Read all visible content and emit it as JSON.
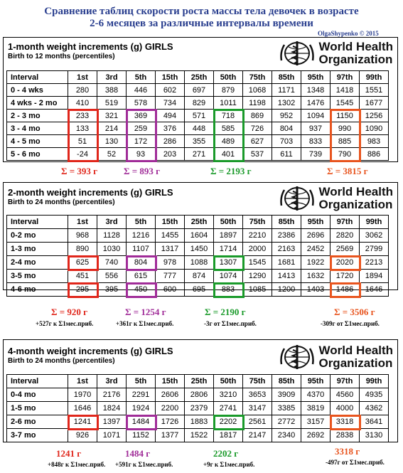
{
  "header": {
    "title_line1": "Сравнение таблиц скорости роста массы тела девочек в возрасте",
    "title_line2": "2-6 месяцев за различные интервалы времени",
    "credit": "OlgaShypenko © 2015"
  },
  "who": {
    "line1": "World Health",
    "line2": "Organization"
  },
  "columns": [
    "Interval",
    "1st",
    "3rd",
    "5th",
    "15th",
    "25th",
    "50th",
    "75th",
    "85th",
    "95th",
    "97th",
    "99th"
  ],
  "table1": {
    "title": "1-month weight increments (g) GIRLS",
    "subtitle": "Birth to 12 months (percentiles)",
    "rows": [
      [
        "0 - 4 wks",
        "280",
        "388",
        "446",
        "602",
        "697",
        "879",
        "1068",
        "1171",
        "1348",
        "1418",
        "1551"
      ],
      [
        "4 wks - 2 mo",
        "410",
        "519",
        "578",
        "734",
        "829",
        "1011",
        "1198",
        "1302",
        "1476",
        "1545",
        "1677"
      ],
      [
        "2 - 3 mo",
        "233",
        "321",
        "369",
        "494",
        "571",
        "718",
        "869",
        "952",
        "1094",
        "1150",
        "1256"
      ],
      [
        "3 - 4 mo",
        "133",
        "214",
        "259",
        "376",
        "448",
        "585",
        "726",
        "804",
        "937",
        "990",
        "1090"
      ],
      [
        "4 - 5 mo",
        "51",
        "130",
        "172",
        "286",
        "355",
        "489",
        "627",
        "703",
        "833",
        "885",
        "983"
      ],
      [
        "5 - 6 mo",
        "-24",
        "52",
        "93",
        "203",
        "271",
        "401",
        "537",
        "611",
        "739",
        "790",
        "886"
      ]
    ],
    "sums": [
      "Σ = 393 г",
      "Σ = 893 г",
      "Σ = 2193 г",
      "Σ = 3815 г"
    ]
  },
  "table2": {
    "title": "2-month weight increments (g) GIRLS",
    "subtitle": "Birth to 24 months (percentiles)",
    "rows": [
      [
        "0-2 mo",
        "968",
        "1128",
        "1216",
        "1455",
        "1604",
        "1897",
        "2210",
        "2386",
        "2696",
        "2820",
        "3062"
      ],
      [
        "1-3 mo",
        "890",
        "1030",
        "1107",
        "1317",
        "1450",
        "1714",
        "2000",
        "2163",
        "2452",
        "2569",
        "2799"
      ],
      [
        "2-4 mo",
        "625",
        "740",
        "804",
        "978",
        "1088",
        "1307",
        "1545",
        "1681",
        "1922",
        "2020",
        "2213"
      ],
      [
        "3-5 mo",
        "451",
        "556",
        "615",
        "777",
        "874",
        "1074",
        "1290",
        "1413",
        "1632",
        "1720",
        "1894"
      ],
      [
        "4-6 mo",
        "295",
        "395",
        "450",
        "600",
        "695",
        "883",
        "1085",
        "1200",
        "1403",
        "1486",
        "1646"
      ]
    ],
    "sums": [
      "Σ = 920 г",
      "Σ = 1254 г",
      "Σ = 2190 г",
      "Σ = 3506 г"
    ],
    "notes": [
      "+527г к Σ1мес.приб.",
      "+361г к Σ1мес.приб.",
      "-3г от Σ1мес.приб.",
      "-309г от Σ1мес.приб."
    ]
  },
  "table3": {
    "title": "4-month weight increments (g) GIRLS",
    "subtitle": "Birth to 24 months (percentiles)",
    "rows": [
      [
        "0-4 mo",
        "1970",
        "2176",
        "2291",
        "2606",
        "2806",
        "3210",
        "3653",
        "3909",
        "4370",
        "4560",
        "4935"
      ],
      [
        "1-5 mo",
        "1646",
        "1824",
        "1924",
        "2200",
        "2379",
        "2741",
        "3147",
        "3385",
        "3819",
        "4000",
        "4362"
      ],
      [
        "2-6 mo",
        "1241",
        "1397",
        "1484",
        "1726",
        "1883",
        "2202",
        "2561",
        "2772",
        "3157",
        "3318",
        "3641"
      ],
      [
        "3-7 mo",
        "926",
        "1071",
        "1152",
        "1377",
        "1522",
        "1817",
        "2147",
        "2340",
        "2692",
        "2838",
        "3130"
      ]
    ],
    "sums": [
      "1241 г",
      "1484 г",
      "2202 г",
      "3318 г"
    ],
    "notes": [
      "+848г к Σ1мес.приб.",
      "+591г к Σ1мес.приб.",
      "+9г к Σ1мес.приб.",
      "-497г от Σ1мес.приб."
    ]
  },
  "colors": {
    "red": "#e0261b",
    "purple": "#a02c98",
    "green": "#1a9a2a",
    "orange": "#e8541e",
    "title": "#2a3f8f"
  }
}
